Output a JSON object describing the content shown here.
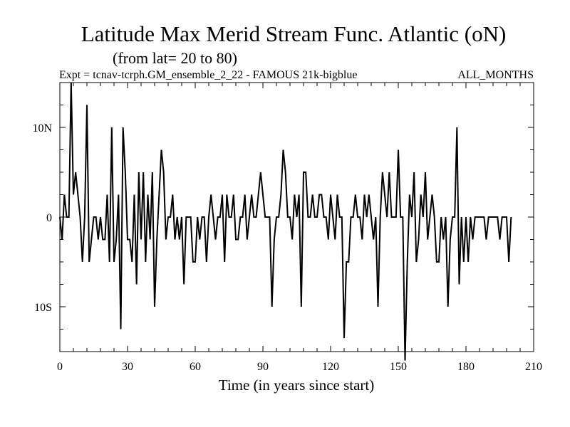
{
  "chart_data": {
    "type": "line",
    "title": "Latitude Max Merid Stream Func. Atlantic (oN)",
    "subtitle": "(from lat= 20 to 80)",
    "experiment": "Expt = tcnav-tcrph.GM_ensemble_2_22 - FAMOUS 21k-bigblue",
    "months": "ALL_MONTHS",
    "xlabel": "Time (in years since start)",
    "ylabel": "",
    "xlim": [
      0,
      210
    ],
    "ylim": [
      -15,
      15
    ],
    "x_ticks": [
      0,
      30,
      60,
      90,
      120,
      150,
      180,
      210
    ],
    "x_tick_labels": [
      "0",
      "30",
      "60",
      "90",
      "120",
      "150",
      "180",
      "210"
    ],
    "y_ticks": [
      10,
      0,
      -10
    ],
    "y_tick_labels": [
      "10N",
      "0",
      "10S"
    ],
    "grid": false,
    "series": [
      {
        "name": "Latitude Max Merid Stream Func.",
        "x": [
          0,
          1,
          2,
          3,
          4,
          5,
          6,
          7,
          8,
          9,
          10,
          11,
          12,
          13,
          14,
          15,
          16,
          17,
          18,
          19,
          20,
          21,
          22,
          23,
          24,
          25,
          26,
          27,
          28,
          29,
          30,
          31,
          32,
          33,
          34,
          35,
          36,
          37,
          38,
          39,
          40,
          41,
          42,
          43,
          44,
          45,
          46,
          47,
          48,
          49,
          50,
          51,
          52,
          53,
          54,
          55,
          56,
          57,
          58,
          59,
          60,
          61,
          62,
          63,
          64,
          65,
          66,
          67,
          68,
          69,
          70,
          71,
          72,
          73,
          74,
          75,
          76,
          77,
          78,
          79,
          80,
          81,
          82,
          83,
          84,
          85,
          86,
          87,
          88,
          89,
          90,
          91,
          92,
          93,
          94,
          95,
          96,
          97,
          98,
          99,
          100,
          101,
          102,
          103,
          104,
          105,
          106,
          107,
          108,
          109,
          110,
          111,
          112,
          113,
          114,
          115,
          116,
          117,
          118,
          119,
          120,
          121,
          122,
          123,
          124,
          125,
          126,
          127,
          128,
          129,
          130,
          131,
          132,
          133,
          134,
          135,
          136,
          137,
          138,
          139,
          140,
          141,
          142,
          143,
          144,
          145,
          146,
          147,
          148,
          149,
          150,
          151,
          152,
          153,
          154,
          155,
          156,
          157,
          158,
          159,
          160,
          161,
          162,
          163,
          164,
          165,
          166,
          167,
          168,
          169,
          170,
          171,
          172,
          173,
          174,
          175,
          176,
          177,
          178,
          179,
          180,
          181,
          182,
          183,
          184,
          185,
          186,
          187,
          188,
          189,
          190,
          191,
          192,
          193,
          194,
          195,
          196,
          197,
          198,
          199,
          200
        ],
        "values": [
          0,
          -2.5,
          2.5,
          0,
          0,
          15,
          2.5,
          5,
          2.5,
          0,
          -5,
          0,
          12.5,
          -5,
          -2.5,
          0,
          0,
          -2.5,
          0,
          -2.5,
          -2.5,
          2.5,
          -5,
          10,
          -5,
          -2.5,
          2.5,
          -12.5,
          10,
          5,
          -2.5,
          -2.5,
          -5,
          2.5,
          -7.5,
          5,
          -2.5,
          5,
          -5,
          2.5,
          -2.5,
          5,
          -10,
          -2.5,
          2.5,
          7.5,
          5,
          -2.5,
          0,
          0,
          2.5,
          -2.5,
          0,
          -2.5,
          0,
          -7.5,
          0,
          0,
          0,
          -5,
          -5,
          0,
          -2.5,
          0,
          0,
          -5,
          0,
          2.5,
          0,
          -2.5,
          0,
          0,
          2.5,
          -5,
          2.5,
          0,
          0,
          2.5,
          -2.5,
          -2.5,
          0,
          0,
          2.5,
          -2.5,
          0,
          2.5,
          0,
          0,
          2.5,
          5,
          2.5,
          0,
          0,
          0,
          -10,
          -2.5,
          0,
          0,
          2.5,
          7.5,
          5,
          0,
          0,
          -2.5,
          2.5,
          0,
          2.5,
          -10,
          5,
          5,
          0,
          0,
          2.5,
          0,
          0,
          2.5,
          2.5,
          0,
          0,
          -2.5,
          2.5,
          0,
          -2.5,
          2.5,
          0,
          0,
          -13.5,
          -5,
          -5,
          0,
          0,
          2.5,
          0,
          0,
          -2.5,
          2.5,
          0,
          2.5,
          0,
          -2.5,
          0,
          -10,
          0,
          5,
          2.5,
          0,
          5,
          0,
          0,
          0,
          7.5,
          0,
          0,
          -16,
          -5,
          2.5,
          0,
          5,
          -5,
          -2.5,
          2.5,
          0,
          5,
          -2.5,
          0,
          2.5,
          0,
          -5,
          -5,
          0,
          -2.5,
          0,
          -10,
          -2.5,
          0,
          0,
          10,
          -7.5,
          0,
          -5,
          0,
          -5,
          0,
          -2.5,
          0,
          0,
          0,
          0,
          0,
          -2.5,
          0,
          0,
          0,
          0,
          0,
          -2.5,
          0,
          0,
          0,
          -5,
          0
        ]
      }
    ]
  }
}
